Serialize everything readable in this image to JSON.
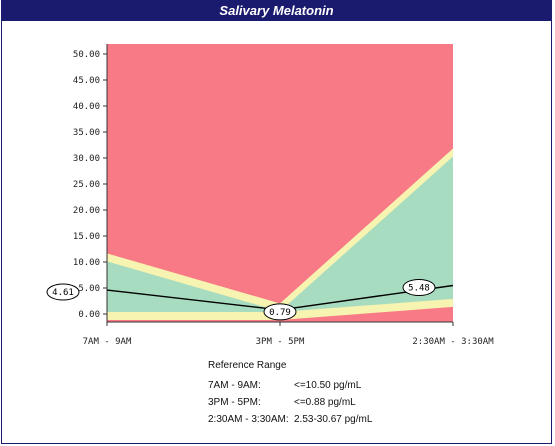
{
  "title": "Salivary Melatonin",
  "colors": {
    "title_bg": "#1a1a6e",
    "out_of_range": "#f77a86",
    "in_range": "#a8dcc0",
    "border_band": "#f7f3b0"
  },
  "chart_data": {
    "type": "line",
    "title": "Salivary Melatonin",
    "categories": [
      "7AM - 9AM",
      "3PM - 5PM",
      "2:30AM - 3:30AM"
    ],
    "series": [
      {
        "values": [
          4.61,
          0.79,
          5.48
        ],
        "labels": [
          "4.61",
          "0.79",
          "5.48"
        ]
      }
    ],
    "reference_band": {
      "low": [
        0,
        0,
        2.53
      ],
      "high": [
        10.5,
        0.88,
        30.67
      ]
    },
    "ylim": [
      0,
      50
    ],
    "yticks": [
      "0.00",
      "5.00",
      "10.00",
      "15.00",
      "20.00",
      "25.00",
      "30.00",
      "35.00",
      "40.00",
      "45.00",
      "50.00"
    ],
    "xlabel": "",
    "ylabel": ""
  },
  "reference": {
    "heading": "Reference Range",
    "rows": [
      {
        "label": "7AM - 9AM:",
        "value": "<=10.50 pg/mL"
      },
      {
        "label": "3PM - 5PM:",
        "value": "<=0.88 pg/mL"
      },
      {
        "label": "2:30AM - 3:30AM:",
        "value": "2.53-30.67 pg/mL"
      }
    ]
  }
}
